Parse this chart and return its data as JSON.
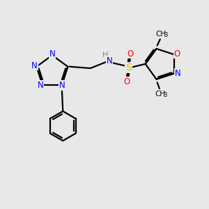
{
  "bg_color": "#e8e8e8",
  "atom_colors": {
    "N": "#0000FF",
    "O": "#FF0000",
    "S": "#CCCC00",
    "C": "#000000",
    "H": "#808080"
  },
  "bond_color": "#000000"
}
